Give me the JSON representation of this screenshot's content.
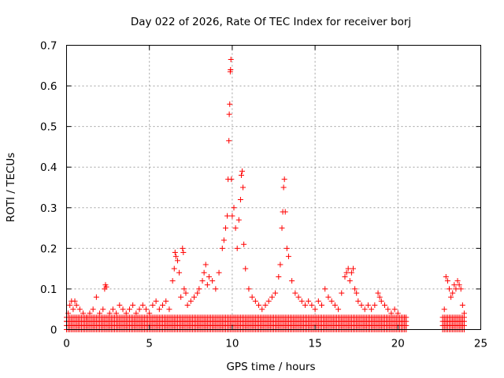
{
  "chart_data": {
    "type": "scatter",
    "title": "Day 022 of 2026, Rate Of TEC Index for receiver borj",
    "xlabel": "GPS time / hours",
    "ylabel": "ROTI / TECUs",
    "xlim": [
      0,
      25
    ],
    "ylim": [
      0,
      0.7
    ],
    "xticks": [
      0,
      5,
      10,
      15,
      20,
      25
    ],
    "yticks": [
      0,
      0.1,
      0.2,
      0.3,
      0.4,
      0.5,
      0.6,
      0.7
    ],
    "xtick_labels": [
      "0",
      "5",
      "10",
      "15",
      "20",
      "25"
    ],
    "ytick_labels": [
      "0",
      "0.1",
      "0.2",
      "0.3",
      "0.4",
      "0.5",
      "0.6",
      "0.7"
    ],
    "grid": true,
    "legend": "none",
    "marker": "+",
    "marker_color": "#ff0000",
    "series": [
      {
        "points": [
          [
            0.0,
            0.02
          ],
          [
            0.1,
            0.04
          ],
          [
            0.2,
            0.06
          ],
          [
            0.3,
            0.07
          ],
          [
            0.4,
            0.05
          ],
          [
            0.5,
            0.07
          ],
          [
            0.6,
            0.06
          ],
          [
            0.8,
            0.05
          ],
          [
            1.0,
            0.04
          ],
          [
            1.2,
            0.03
          ],
          [
            1.4,
            0.04
          ],
          [
            1.6,
            0.05
          ],
          [
            1.8,
            0.08
          ],
          [
            2.0,
            0.04
          ],
          [
            2.2,
            0.05
          ],
          [
            2.3,
            0.1
          ],
          [
            2.35,
            0.11
          ],
          [
            2.4,
            0.105
          ],
          [
            2.6,
            0.04
          ],
          [
            2.8,
            0.05
          ],
          [
            3.0,
            0.04
          ],
          [
            3.2,
            0.06
          ],
          [
            3.4,
            0.05
          ],
          [
            3.6,
            0.04
          ],
          [
            3.8,
            0.05
          ],
          [
            4.0,
            0.06
          ],
          [
            4.2,
            0.04
          ],
          [
            4.4,
            0.05
          ],
          [
            4.6,
            0.06
          ],
          [
            4.8,
            0.05
          ],
          [
            5.0,
            0.04
          ],
          [
            5.2,
            0.06
          ],
          [
            5.4,
            0.07
          ],
          [
            5.6,
            0.05
          ],
          [
            5.8,
            0.06
          ],
          [
            6.0,
            0.07
          ],
          [
            6.2,
            0.05
          ],
          [
            6.4,
            0.12
          ],
          [
            6.5,
            0.15
          ],
          [
            6.55,
            0.19
          ],
          [
            6.6,
            0.18
          ],
          [
            6.7,
            0.17
          ],
          [
            6.8,
            0.14
          ],
          [
            6.9,
            0.08
          ],
          [
            7.0,
            0.2
          ],
          [
            7.05,
            0.19
          ],
          [
            7.1,
            0.1
          ],
          [
            7.2,
            0.09
          ],
          [
            7.3,
            0.06
          ],
          [
            7.5,
            0.07
          ],
          [
            7.7,
            0.08
          ],
          [
            7.9,
            0.09
          ],
          [
            8.0,
            0.1
          ],
          [
            8.2,
            0.12
          ],
          [
            8.3,
            0.14
          ],
          [
            8.4,
            0.16
          ],
          [
            8.5,
            0.11
          ],
          [
            8.6,
            0.13
          ],
          [
            8.8,
            0.12
          ],
          [
            9.0,
            0.1
          ],
          [
            9.2,
            0.14
          ],
          [
            9.4,
            0.2
          ],
          [
            9.5,
            0.22
          ],
          [
            9.6,
            0.25
          ],
          [
            9.7,
            0.28
          ],
          [
            9.75,
            0.37
          ],
          [
            9.8,
            0.465
          ],
          [
            9.82,
            0.53
          ],
          [
            9.85,
            0.555
          ],
          [
            9.88,
            0.635
          ],
          [
            9.9,
            0.64
          ],
          [
            9.92,
            0.665
          ],
          [
            9.95,
            0.37
          ],
          [
            10.0,
            0.28
          ],
          [
            10.1,
            0.3
          ],
          [
            10.2,
            0.25
          ],
          [
            10.3,
            0.2
          ],
          [
            10.4,
            0.27
          ],
          [
            10.5,
            0.32
          ],
          [
            10.55,
            0.38
          ],
          [
            10.6,
            0.39
          ],
          [
            10.65,
            0.35
          ],
          [
            10.7,
            0.21
          ],
          [
            10.8,
            0.15
          ],
          [
            11.0,
            0.1
          ],
          [
            11.2,
            0.08
          ],
          [
            11.4,
            0.07
          ],
          [
            11.6,
            0.06
          ],
          [
            11.8,
            0.05
          ],
          [
            12.0,
            0.06
          ],
          [
            12.2,
            0.07
          ],
          [
            12.4,
            0.08
          ],
          [
            12.6,
            0.09
          ],
          [
            12.8,
            0.13
          ],
          [
            12.9,
            0.16
          ],
          [
            13.0,
            0.25
          ],
          [
            13.05,
            0.29
          ],
          [
            13.1,
            0.35
          ],
          [
            13.15,
            0.37
          ],
          [
            13.2,
            0.29
          ],
          [
            13.3,
            0.2
          ],
          [
            13.4,
            0.18
          ],
          [
            13.6,
            0.12
          ],
          [
            13.8,
            0.09
          ],
          [
            14.0,
            0.08
          ],
          [
            14.2,
            0.07
          ],
          [
            14.4,
            0.06
          ],
          [
            14.6,
            0.07
          ],
          [
            14.8,
            0.06
          ],
          [
            15.0,
            0.05
          ],
          [
            15.2,
            0.07
          ],
          [
            15.4,
            0.06
          ],
          [
            15.6,
            0.1
          ],
          [
            15.8,
            0.08
          ],
          [
            16.0,
            0.07
          ],
          [
            16.2,
            0.06
          ],
          [
            16.4,
            0.05
          ],
          [
            16.6,
            0.09
          ],
          [
            16.8,
            0.13
          ],
          [
            16.9,
            0.14
          ],
          [
            17.0,
            0.15
          ],
          [
            17.1,
            0.12
          ],
          [
            17.2,
            0.14
          ],
          [
            17.3,
            0.15
          ],
          [
            17.4,
            0.1
          ],
          [
            17.5,
            0.09
          ],
          [
            17.6,
            0.07
          ],
          [
            17.8,
            0.06
          ],
          [
            18.0,
            0.05
          ],
          [
            18.2,
            0.06
          ],
          [
            18.4,
            0.05
          ],
          [
            18.6,
            0.06
          ],
          [
            18.8,
            0.09
          ],
          [
            18.9,
            0.08
          ],
          [
            19.0,
            0.07
          ],
          [
            19.2,
            0.06
          ],
          [
            19.4,
            0.05
          ],
          [
            19.6,
            0.04
          ],
          [
            19.8,
            0.05
          ],
          [
            20.0,
            0.04
          ],
          [
            20.2,
            0.03
          ],
          [
            20.4,
            0.03
          ],
          [
            22.8,
            0.05
          ],
          [
            22.9,
            0.13
          ],
          [
            23.0,
            0.12
          ],
          [
            23.1,
            0.1
          ],
          [
            23.2,
            0.08
          ],
          [
            23.3,
            0.09
          ],
          [
            23.4,
            0.11
          ],
          [
            23.5,
            0.1
          ],
          [
            23.6,
            0.12
          ],
          [
            23.7,
            0.11
          ],
          [
            23.8,
            0.1
          ],
          [
            23.9,
            0.06
          ],
          [
            24.0,
            0.04
          ]
        ]
      }
    ],
    "bands": [
      {
        "x_start": 0.0,
        "x_end": 20.5,
        "y_high": 0.03,
        "density": 10
      },
      {
        "x_start": 22.7,
        "x_end": 24.0,
        "y_high": 0.03,
        "density": 10
      }
    ]
  }
}
